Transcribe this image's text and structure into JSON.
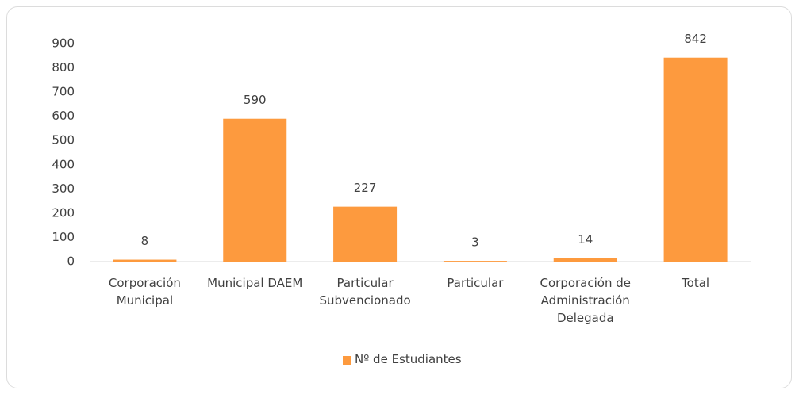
{
  "chart_data": {
    "type": "bar",
    "categories": [
      "Corporación Municipal",
      "Municipal DAEM",
      "Particular Subvencionado",
      "Particular",
      "Corporación de Administración Delegada",
      "Total"
    ],
    "series": [
      {
        "name": "Nº de Estudiantes",
        "color": "#fd9a3e",
        "values": [
          8,
          590,
          227,
          3,
          14,
          842
        ]
      }
    ],
    "ylim": [
      0,
      900
    ],
    "yticks": [
      0,
      100,
      200,
      300,
      400,
      500,
      600,
      700,
      800,
      900
    ],
    "grid": false,
    "legend": "bottom"
  }
}
